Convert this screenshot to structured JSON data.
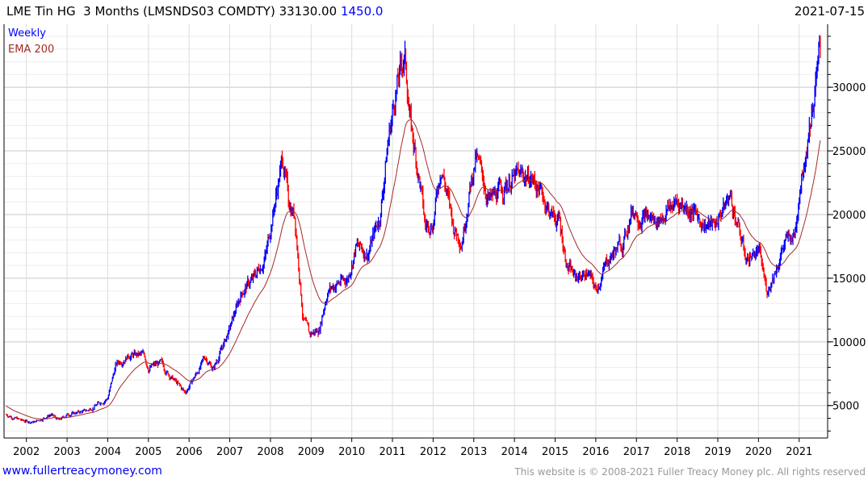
{
  "header": {
    "title": "LME Tin HG  3 Months (LMSNDS03 COMDTY) 33130.00",
    "change": "1450.0",
    "date": "2021-07-15"
  },
  "footer": {
    "site_link": "www.fullertreacymoney.com",
    "copyright": "This website is © 2008-2021 Fuller Treacy Money plc. All rights reserved"
  },
  "chart_data": {
    "type": "line",
    "title": "LME Tin HG  3 Months (LMSNDS03 COMDTY)",
    "legend": [
      {
        "label": "Weekly",
        "color": "#0000ff"
      },
      {
        "label": "EMA 200",
        "color": "#a52a2a"
      }
    ],
    "legend_placement": "top-left",
    "up_color": "#0000ff",
    "down_color": "#ff0000",
    "ema_color": "#a52a2a",
    "ylim": [
      2450,
      34950
    ],
    "xlim": [
      2001.45,
      2021.7
    ],
    "y_ticks": [
      5000,
      10000,
      15000,
      20000,
      25000,
      30000
    ],
    "x_ticks": [
      "2002",
      "2003",
      "2004",
      "2005",
      "2006",
      "2007",
      "2008",
      "2009",
      "2010",
      "2011",
      "2012",
      "2013",
      "2014",
      "2015",
      "2016",
      "2017",
      "2018",
      "2019",
      "2020",
      "2021"
    ],
    "grid": true,
    "ema_start": 5000,
    "price_keypoints": [
      [
        2001.5,
        4300
      ],
      [
        2001.9,
        3800
      ],
      [
        2002.2,
        3700
      ],
      [
        2002.6,
        4300
      ],
      [
        2002.8,
        3800
      ],
      [
        2003.0,
        4300
      ],
      [
        2003.5,
        4600
      ],
      [
        2004.0,
        5600
      ],
      [
        2004.2,
        8200
      ],
      [
        2004.5,
        9000
      ],
      [
        2004.9,
        8900
      ],
      [
        2005.0,
        8000
      ],
      [
        2005.3,
        8300
      ],
      [
        2005.6,
        7100
      ],
      [
        2005.9,
        6000
      ],
      [
        2006.2,
        7600
      ],
      [
        2006.4,
        8800
      ],
      [
        2006.6,
        7900
      ],
      [
        2007.0,
        11000
      ],
      [
        2007.3,
        14000
      ],
      [
        2007.6,
        15000
      ],
      [
        2007.9,
        17000
      ],
      [
        2008.0,
        19000
      ],
      [
        2008.3,
        24500
      ],
      [
        2008.45,
        21000
      ],
      [
        2008.6,
        20000
      ],
      [
        2008.8,
        12000
      ],
      [
        2008.95,
        10500
      ],
      [
        2009.2,
        11000
      ],
      [
        2009.4,
        14000
      ],
      [
        2009.6,
        14500
      ],
      [
        2009.9,
        15000
      ],
      [
        2010.1,
        17500
      ],
      [
        2010.4,
        17000
      ],
      [
        2010.7,
        20000
      ],
      [
        2010.9,
        26000
      ],
      [
        2011.1,
        30000
      ],
      [
        2011.3,
        32500
      ],
      [
        2011.45,
        27000
      ],
      [
        2011.7,
        22000
      ],
      [
        2011.8,
        19000
      ],
      [
        2012.0,
        19500
      ],
      [
        2012.2,
        24000
      ],
      [
        2012.5,
        19000
      ],
      [
        2012.7,
        18000
      ],
      [
        2012.9,
        22000
      ],
      [
        2013.05,
        24500
      ],
      [
        2013.4,
        21000
      ],
      [
        2013.7,
        22000
      ],
      [
        2013.9,
        22800
      ],
      [
        2014.2,
        23000
      ],
      [
        2014.4,
        23000
      ],
      [
        2014.7,
        21500
      ],
      [
        2014.9,
        20000
      ],
      [
        2015.1,
        19500
      ],
      [
        2015.3,
        16000
      ],
      [
        2015.5,
        15000
      ],
      [
        2015.8,
        15500
      ],
      [
        2016.0,
        14000
      ],
      [
        2016.3,
        16500
      ],
      [
        2016.7,
        18000
      ],
      [
        2016.9,
        20500
      ],
      [
        2017.1,
        20000
      ],
      [
        2017.5,
        19500
      ],
      [
        2017.8,
        20500
      ],
      [
        2018.0,
        21000
      ],
      [
        2018.3,
        20500
      ],
      [
        2018.6,
        19500
      ],
      [
        2018.9,
        19000
      ],
      [
        2019.0,
        19700
      ],
      [
        2019.3,
        21500
      ],
      [
        2019.5,
        19000
      ],
      [
        2019.7,
        16500
      ],
      [
        2019.9,
        17000
      ],
      [
        2020.0,
        17200
      ],
      [
        2020.2,
        14000
      ],
      [
        2020.4,
        15500
      ],
      [
        2020.6,
        17500
      ],
      [
        2020.9,
        18500
      ],
      [
        2021.0,
        22000
      ],
      [
        2021.2,
        26000
      ],
      [
        2021.4,
        30000
      ],
      [
        2021.53,
        33130
      ]
    ]
  }
}
